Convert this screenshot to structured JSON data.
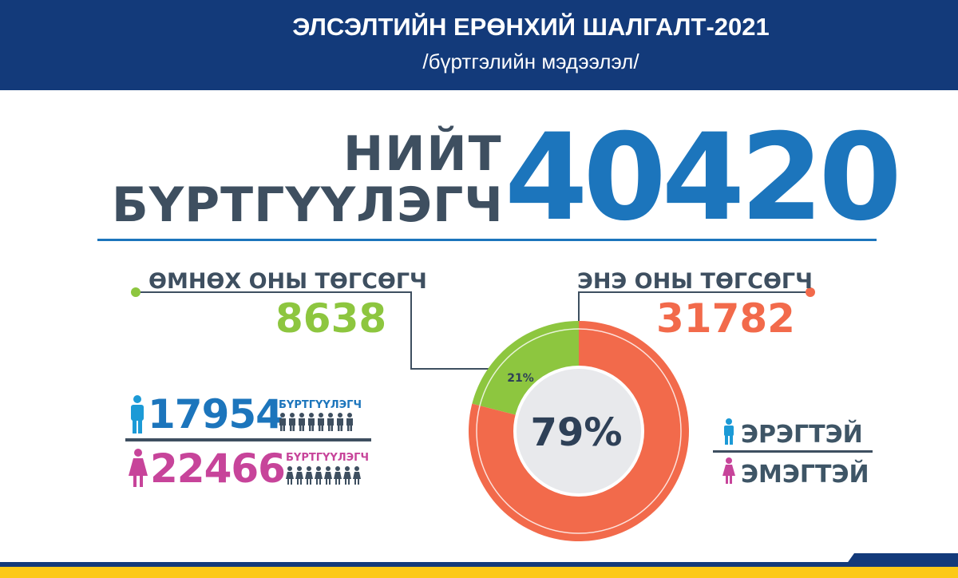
{
  "header": {
    "title": "ЭЛСЭЛТИЙН ЕРӨНХИЙ ШАЛГАЛТ-2021",
    "subtitle": "/бүртгэлийн мэдээлэл/"
  },
  "total": {
    "label_line1": "НИЙТ",
    "label_line2": "БҮРТГҮҮЛЭГЧ",
    "value": "40420"
  },
  "previous_graduates": {
    "label": "ӨМНӨХ ОНЫ ТӨГСӨГЧ",
    "value": "8638"
  },
  "current_graduates": {
    "label": "ЭНЭ ОНЫ ТӨГСӨГЧ",
    "value": "31782"
  },
  "gender": {
    "male": {
      "count": "17954",
      "unit": "БҮРТГҮҮЛЭГЧ"
    },
    "female": {
      "count": "22466",
      "unit": "БҮРТГҮҮЛЭГЧ"
    }
  },
  "legend": {
    "male": "ЭРЭГТЭЙ",
    "female": "ЭМЭГТЭЙ"
  },
  "colors": {
    "header": "#133a7a",
    "total": "#1c75bc",
    "previous": "#8dc63f",
    "current": "#f26a4b",
    "male": "#1c75bc",
    "female": "#c7449a",
    "footer": "#fcc917"
  },
  "chart_data": {
    "type": "pie",
    "donut": true,
    "slices": [
      {
        "label": "ӨМНӨХ ОНЫ ТӨГСӨГЧ",
        "value": 21,
        "display": "21%",
        "color": "#8dc63f"
      },
      {
        "label": "ЭНЭ ОНЫ ТӨГСӨГЧ",
        "value": 79,
        "display": "79%",
        "color": "#f26a4b"
      }
    ],
    "center_label": "79%"
  }
}
